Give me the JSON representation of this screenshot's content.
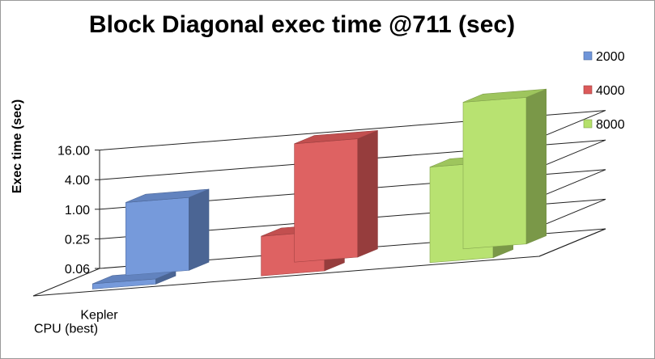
{
  "chart_data": {
    "type": "bar",
    "title": "Block Diagonal exec time @711 (sec)",
    "ylabel": "Exec time (sec)",
    "xlabel": "",
    "yscale": "log",
    "yticks": [
      0.0625,
      0.25,
      1,
      4,
      16
    ],
    "ytick_labels": [
      "0.06",
      "0.25",
      "1.00",
      "4.00",
      "16.00"
    ],
    "ylim": [
      0.0625,
      64
    ],
    "categories": [
      "Kepler",
      "CPU (best)"
    ],
    "series": [
      {
        "name": "2000",
        "values": [
          1.9,
          0.08
        ],
        "color": "#6f95d9"
      },
      {
        "name": "4000",
        "values": [
          16,
          0.4
        ],
        "color": "#dc5a5a"
      },
      {
        "name": "8000",
        "values": [
          60,
          5.5
        ],
        "color": "#b4e06a"
      }
    ],
    "legend_position": "right",
    "grid": true,
    "view": "3d"
  }
}
